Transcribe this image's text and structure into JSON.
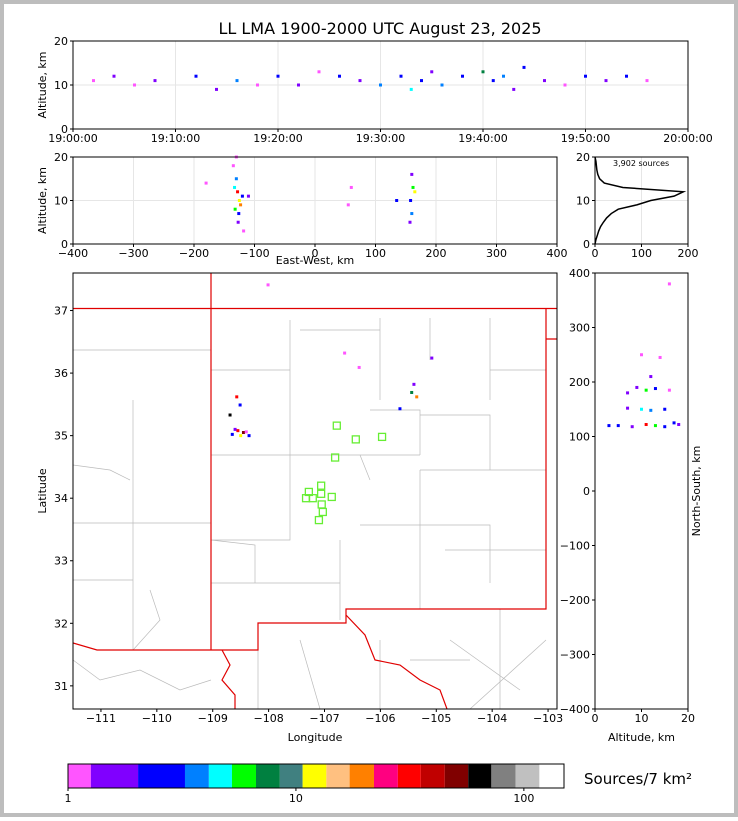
{
  "chart_data": [
    {
      "type": "scatter",
      "title": "LL LMA 1900-2000 UTC August 23, 2025",
      "ylabel": "Altitude, km",
      "x": [
        2,
        4,
        6,
        8,
        12,
        14,
        16,
        18,
        20,
        22,
        24,
        26,
        28,
        30,
        32,
        33,
        34,
        35,
        36,
        38,
        40,
        41,
        42,
        43,
        44,
        46,
        48,
        50,
        52,
        54,
        56
      ],
      "y": [
        11,
        12,
        10,
        11,
        12,
        9,
        11,
        10,
        12,
        10,
        13,
        12,
        11,
        10,
        12,
        9,
        11,
        13,
        10,
        12,
        13,
        11,
        12,
        9,
        14,
        11,
        10,
        12,
        11,
        12,
        11
      ],
      "colors": [
        "#ff55ff",
        "#8000ff",
        "#ff55ff",
        "#8000ff",
        "#0000ff",
        "#8000ff",
        "#0080ff",
        "#ff55ff",
        "#0000ff",
        "#8000ff",
        "#ff55ff",
        "#0000ff",
        "#8000ff",
        "#0080ff",
        "#0000ff",
        "#00ffff",
        "#0000ff",
        "#8000ff",
        "#0080ff",
        "#0000ff",
        "#008040",
        "#0000ff",
        "#0080ff",
        "#8000ff",
        "#0000ff",
        "#8000ff",
        "#ff55ff",
        "#0000ff",
        "#8000ff",
        "#0000ff",
        "#ff55ff"
      ],
      "xlim": [
        0,
        60
      ],
      "xticks": [
        {
          "value": 0,
          "label": "19:00:00"
        },
        {
          "value": 10,
          "label": "19:10:00"
        },
        {
          "value": 20,
          "label": "19:20:00"
        },
        {
          "value": 30,
          "label": "19:30:00"
        },
        {
          "value": 40,
          "label": "19:40:00"
        },
        {
          "value": 50,
          "label": "19:50:00"
        },
        {
          "value": 60,
          "label": "20:00:00"
        }
      ],
      "ylim": [
        0,
        20
      ],
      "yticks": [
        0,
        10,
        20
      ],
      "grid": true
    },
    {
      "type": "scatter",
      "xlabel": "East-West, km",
      "ylabel": "Altitude, km",
      "x": [
        -135,
        -130,
        -128,
        -125,
        -132,
        -120,
        -127,
        -133,
        -123,
        -118,
        -130,
        -126,
        160,
        162,
        158,
        165,
        160,
        157,
        135,
        60,
        -180,
        -110,
        55
      ],
      "y": [
        18,
        15,
        12,
        10,
        8,
        11,
        5,
        13,
        9,
        3,
        20,
        7,
        16,
        13,
        10,
        12,
        7,
        5,
        10,
        13,
        14,
        11,
        9
      ],
      "colors": [
        "#ff55ff",
        "#0080ff",
        "#ff0000",
        "#ffff00",
        "#00ff00",
        "#0000ff",
        "#8000ff",
        "#00ffff",
        "#ff8000",
        "#ff55ff",
        "#ff55ff",
        "#0000ff",
        "#8000ff",
        "#00ff00",
        "#0000ff",
        "#ffff00",
        "#0080ff",
        "#8000ff",
        "#0000ff",
        "#ff55ff",
        "#ff55ff",
        "#8000ff",
        "#ff55ff"
      ],
      "xlim": [
        -400,
        400
      ],
      "xticks": [
        {
          "value": -400,
          "label": "−400"
        },
        {
          "value": -300,
          "label": "−300"
        },
        {
          "value": -200,
          "label": "−200"
        },
        {
          "value": -100,
          "label": "−100"
        },
        0,
        100,
        200,
        300,
        400
      ],
      "ylim": [
        0,
        20
      ],
      "yticks": [
        0,
        10,
        20
      ],
      "grid": true
    },
    {
      "type": "line",
      "annotation": "3,902 sources",
      "x": [
        0,
        2,
        5,
        8,
        12,
        18,
        25,
        35,
        50,
        90,
        120,
        170,
        190,
        60,
        20,
        10,
        6,
        4,
        3,
        2,
        0
      ],
      "y": [
        0,
        1,
        2,
        3,
        4,
        5,
        6,
        7,
        8,
        9,
        10,
        11,
        12,
        13,
        14,
        15,
        16,
        17,
        18,
        19,
        20
      ],
      "color": "#000000",
      "xlim": [
        0,
        200
      ],
      "xticks": [
        0,
        100,
        200
      ],
      "ylim": [
        0,
        20
      ],
      "yticks": [
        0,
        10,
        20
      ],
      "grid": true
    },
    {
      "type": "map",
      "xlabel": "Longitude",
      "ylabel": "Latitude",
      "series": [
        {
          "x": [
            -108.65,
            -108.55,
            -108.45,
            -108.35,
            -108.6,
            -108.5,
            -108.4,
            -108.57,
            -108.69,
            -108.51,
            -105.44,
            -105.4,
            -105.35,
            -105.65,
            -106.38,
            -105.08,
            -106.64,
            -108.01
          ],
          "y": [
            35.02,
            35.08,
            35.05,
            35.0,
            35.1,
            35.0,
            35.06,
            35.62,
            35.33,
            35.49,
            35.69,
            35.82,
            35.62,
            35.43,
            36.09,
            36.24,
            36.32,
            37.41
          ],
          "colors": [
            "#0000ff",
            "#ff0000",
            "#800000",
            "#0000ff",
            "#8000ff",
            "#ffff00",
            "#ff55ff",
            "#ff0000",
            "#000000",
            "#0000ff",
            "#008040",
            "#8000ff",
            "#ff8000",
            "#0000ff",
            "#ff55ff",
            "#8000ff",
            "#ff55ff",
            "#ff55ff"
          ]
        },
        {
          "x": [
            -106.78,
            -106.44,
            -105.97,
            -106.81,
            -107.06,
            -107.28,
            -107.33,
            -107.21,
            -107.06,
            -106.87,
            -107.05,
            -107.03,
            -107.1
          ],
          "y": [
            35.16,
            34.94,
            34.98,
            34.65,
            34.2,
            34.1,
            34.0,
            34.0,
            34.07,
            34.02,
            33.9,
            33.78,
            33.65
          ],
          "color": "#66ee33"
        }
      ],
      "xlim": [
        -111.5,
        -102.84
      ],
      "xticks": [
        {
          "value": -111,
          "label": "−111"
        },
        {
          "value": -110,
          "label": "−110"
        },
        {
          "value": -109,
          "label": "−109"
        },
        {
          "value": -108,
          "label": "−108"
        },
        {
          "value": -107,
          "label": "−107"
        },
        {
          "value": -106,
          "label": "−106"
        },
        {
          "value": -105,
          "label": "−105"
        },
        {
          "value": -104,
          "label": "−104"
        },
        {
          "value": -103,
          "label": "−103"
        }
      ],
      "ylim": [
        30.63,
        37.6
      ],
      "yticks": [
        31,
        32,
        33,
        34,
        35,
        36,
        37
      ]
    },
    {
      "type": "scatter",
      "xlabel": "Altitude, km",
      "ylabel": "North-South, km",
      "x": [
        5,
        8,
        11,
        13,
        15,
        18,
        3,
        10,
        12,
        7,
        15,
        11,
        13,
        9,
        16,
        12,
        10,
        14,
        16,
        7,
        17
      ],
      "y": [
        120,
        118,
        122,
        120,
        118,
        122,
        120,
        150,
        148,
        152,
        150,
        185,
        188,
        190,
        185,
        210,
        250,
        245,
        380,
        180,
        125
      ],
      "colors": [
        "#0000ff",
        "#8000ff",
        "#ff0000",
        "#00ff00",
        "#0000ff",
        "#8000ff",
        "#0000ff",
        "#00ffff",
        "#0080ff",
        "#8000ff",
        "#0000ff",
        "#00ff00",
        "#0000ff",
        "#8000ff",
        "#ff55ff",
        "#8000ff",
        "#ff55ff",
        "#ff55ff",
        "#ff55ff",
        "#8000ff",
        "#0000ff"
      ],
      "xlim": [
        0,
        20
      ],
      "xticks": [
        0,
        10,
        20
      ],
      "ylim": [
        -400,
        400
      ],
      "yticks": [
        {
          "value": -400,
          "label": "−400"
        },
        {
          "value": -300,
          "label": "−300"
        },
        {
          "value": -200,
          "label": "−200"
        },
        {
          "value": -100,
          "label": "−100"
        },
        0,
        100,
        200,
        300,
        400
      ]
    },
    {
      "type": "colorbar",
      "label": "Sources/7 km²",
      "log": true,
      "bounds": [
        1,
        1.26,
        2.03,
        3.26,
        4.15,
        5.24,
        6.68,
        8.5,
        10.7,
        13.6,
        17.2,
        22,
        28,
        35.3,
        45,
        57,
        72,
        92,
        117,
        150
      ],
      "colors": [
        "#ff55ff",
        "#8000ff",
        "#0000ff",
        "#0080ff",
        "#00ffff",
        "#00ff00",
        "#008040",
        "#408080",
        "#ffff00",
        "#ffc080",
        "#ff8000",
        "#ff0080",
        "#ff0000",
        "#c00000",
        "#800000",
        "#000000",
        "#808080",
        "#c0c0c0",
        "#ffffff"
      ],
      "xlim": [
        1,
        150
      ],
      "xticks": [
        1,
        10,
        100
      ]
    }
  ]
}
